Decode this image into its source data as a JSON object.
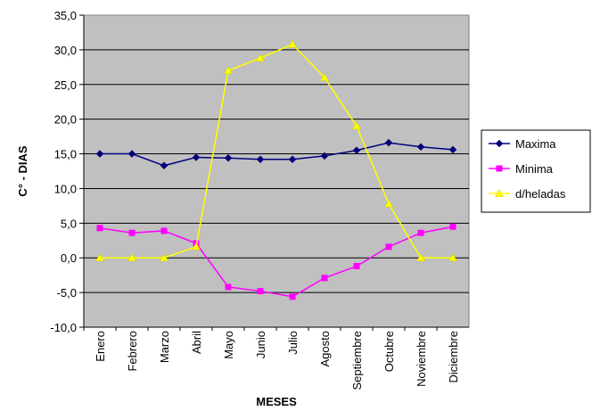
{
  "chart_data": {
    "type": "line",
    "title": "",
    "xlabel": "MESES",
    "ylabel": "C° - DIAS",
    "categories": [
      "Enero",
      "Febrero",
      "Marzo",
      "Abril",
      "Mayo",
      "Junio",
      "Julio",
      "Agosto",
      "Septiembre",
      "Octubre",
      "Noviembre",
      "Diciembre"
    ],
    "ylim": [
      -10,
      35
    ],
    "ytick_step": 5,
    "ytick_labels": [
      "-10,0",
      "-5,0",
      "0,0",
      "5,0",
      "10,0",
      "15,0",
      "20,0",
      "25,0",
      "30,0",
      "35,0"
    ],
    "grid": true,
    "plot_background": "#c0c0c0",
    "legend_position": "right",
    "series": [
      {
        "name": "Maxima",
        "color": "#000080",
        "marker": "diamond",
        "values": [
          15.0,
          15.0,
          13.3,
          14.5,
          14.4,
          14.2,
          14.2,
          14.7,
          15.5,
          16.6,
          16.0,
          15.6
        ]
      },
      {
        "name": "Minima",
        "color": "#ff00ff",
        "marker": "square",
        "values": [
          4.3,
          3.6,
          3.9,
          2.1,
          -4.2,
          -4.8,
          -5.6,
          -2.9,
          -1.2,
          1.6,
          3.6,
          4.5
        ]
      },
      {
        "name": "d/heladas",
        "color": "#ffff00",
        "marker": "triangle",
        "values": [
          0.0,
          0.0,
          0.0,
          1.6,
          27.0,
          28.8,
          30.8,
          26.0,
          19.0,
          7.8,
          0.0,
          0.0
        ]
      }
    ]
  }
}
